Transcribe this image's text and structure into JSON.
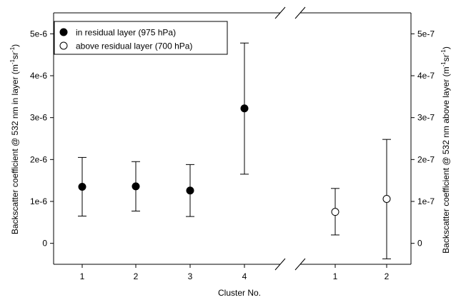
{
  "chart_data": {
    "type": "scatter",
    "xlabel": "Cluster No.",
    "ylabel_left_base": "Backscatter coefficient @ 532 nm in layer (m",
    "ylabel_right_base": "Backscatter coefficient @ 532 nm above layer (m",
    "ylabel_units_tail": "sr",
    "ylabel_exp": "-1",
    "axis_break": true,
    "grid": false,
    "legend_position": "top-left",
    "left_axis": {
      "ylim": [
        -5e-07,
        5.5e-06
      ],
      "ticks": [
        0,
        1e-06,
        2e-06,
        3e-06,
        4e-06,
        5e-06
      ],
      "tick_labels": [
        "0",
        "1e-6",
        "2e-6",
        "3e-6",
        "4e-6",
        "5e-6"
      ]
    },
    "right_axis": {
      "ylim": [
        -5e-08,
        5.5e-07
      ],
      "ticks": [
        0,
        1e-07,
        2e-07,
        3e-07,
        4e-07,
        5e-07
      ],
      "tick_labels": [
        "0",
        "1e-7",
        "2e-7",
        "3e-7",
        "4e-7",
        "5e-7"
      ]
    },
    "series": [
      {
        "name": "in residual layer (975 hPa)",
        "marker": "filled",
        "axis": "left",
        "points": [
          {
            "cluster": "1",
            "y": 1.35e-06,
            "lower": 6.5e-07,
            "upper": 2.05e-06
          },
          {
            "cluster": "2",
            "y": 1.36e-06,
            "lower": 7.7e-07,
            "upper": 1.95e-06
          },
          {
            "cluster": "3",
            "y": 1.26e-06,
            "lower": 6.4e-07,
            "upper": 1.88e-06
          },
          {
            "cluster": "4",
            "y": 3.22e-06,
            "lower": 1.65e-06,
            "upper": 4.78e-06
          }
        ]
      },
      {
        "name": "above residual layer (700 hPa)",
        "marker": "open",
        "axis": "right",
        "points": [
          {
            "cluster": "1",
            "y": 7.5e-08,
            "lower": 2e-08,
            "upper": 1.31e-07
          },
          {
            "cluster": "2",
            "y": 1.06e-07,
            "lower": -3.7e-08,
            "upper": 2.48e-07
          }
        ]
      }
    ],
    "colors": {
      "marker_fill": "#000000",
      "marker_open_fill": "#ffffff",
      "line": "#000000"
    }
  }
}
